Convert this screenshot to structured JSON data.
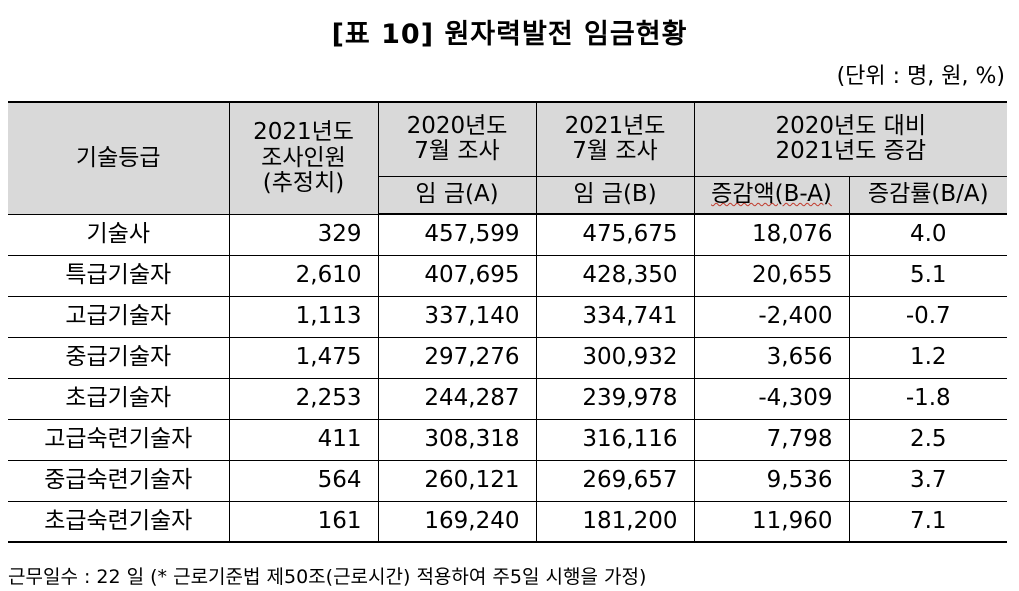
{
  "title": "[표 10] 원자력발전 임금현황",
  "unit_note": "(단위 : 명, 원, %)",
  "headers": {
    "grade": "기술등급",
    "survey_count_l1": "2021년도",
    "survey_count_l2": "조사인원",
    "survey_count_l3": "(추정치)",
    "y2020_l1": "2020년도",
    "y2020_l2": "7월 조사",
    "y2021_l1": "2021년도",
    "y2021_l2": "7월 조사",
    "change_l1": "2020년도 대비",
    "change_l2": "2021년도 증감",
    "wage_a": "임 금(A)",
    "wage_b": "임 금(B)",
    "diff_amount": "증감액(B-A)",
    "diff_rate": "증감률(B/A)"
  },
  "rows": [
    {
      "grade": "기술사",
      "count": "329",
      "wage_a": "457,599",
      "wage_b": "475,675",
      "diff": "18,076",
      "rate": "4.0"
    },
    {
      "grade": "특급기술자",
      "count": "2,610",
      "wage_a": "407,695",
      "wage_b": "428,350",
      "diff": "20,655",
      "rate": "5.1"
    },
    {
      "grade": "고급기술자",
      "count": "1,113",
      "wage_a": "337,140",
      "wage_b": "334,741",
      "diff": "-2,400",
      "rate": "-0.7"
    },
    {
      "grade": "중급기술자",
      "count": "1,475",
      "wage_a": "297,276",
      "wage_b": "300,932",
      "diff": "3,656",
      "rate": "1.2"
    },
    {
      "grade": "초급기술자",
      "count": "2,253",
      "wage_a": "244,287",
      "wage_b": "239,978",
      "diff": "-4,309",
      "rate": "-1.8"
    },
    {
      "grade": "고급숙련기술자",
      "count": "411",
      "wage_a": "308,318",
      "wage_b": "316,116",
      "diff": "7,798",
      "rate": "2.5"
    },
    {
      "grade": "중급숙련기술자",
      "count": "564",
      "wage_a": "260,121",
      "wage_b": "269,657",
      "diff": "9,536",
      "rate": "3.7"
    },
    {
      "grade": "초급숙련기술자",
      "count": "161",
      "wage_a": "169,240",
      "wage_b": "181,200",
      "diff": "11,960",
      "rate": "7.1"
    }
  ],
  "footnote": "근무일수 : 22 일 (* 근로기준법 제50조(근로시간) 적용하여 주5일 시행을 가정)"
}
